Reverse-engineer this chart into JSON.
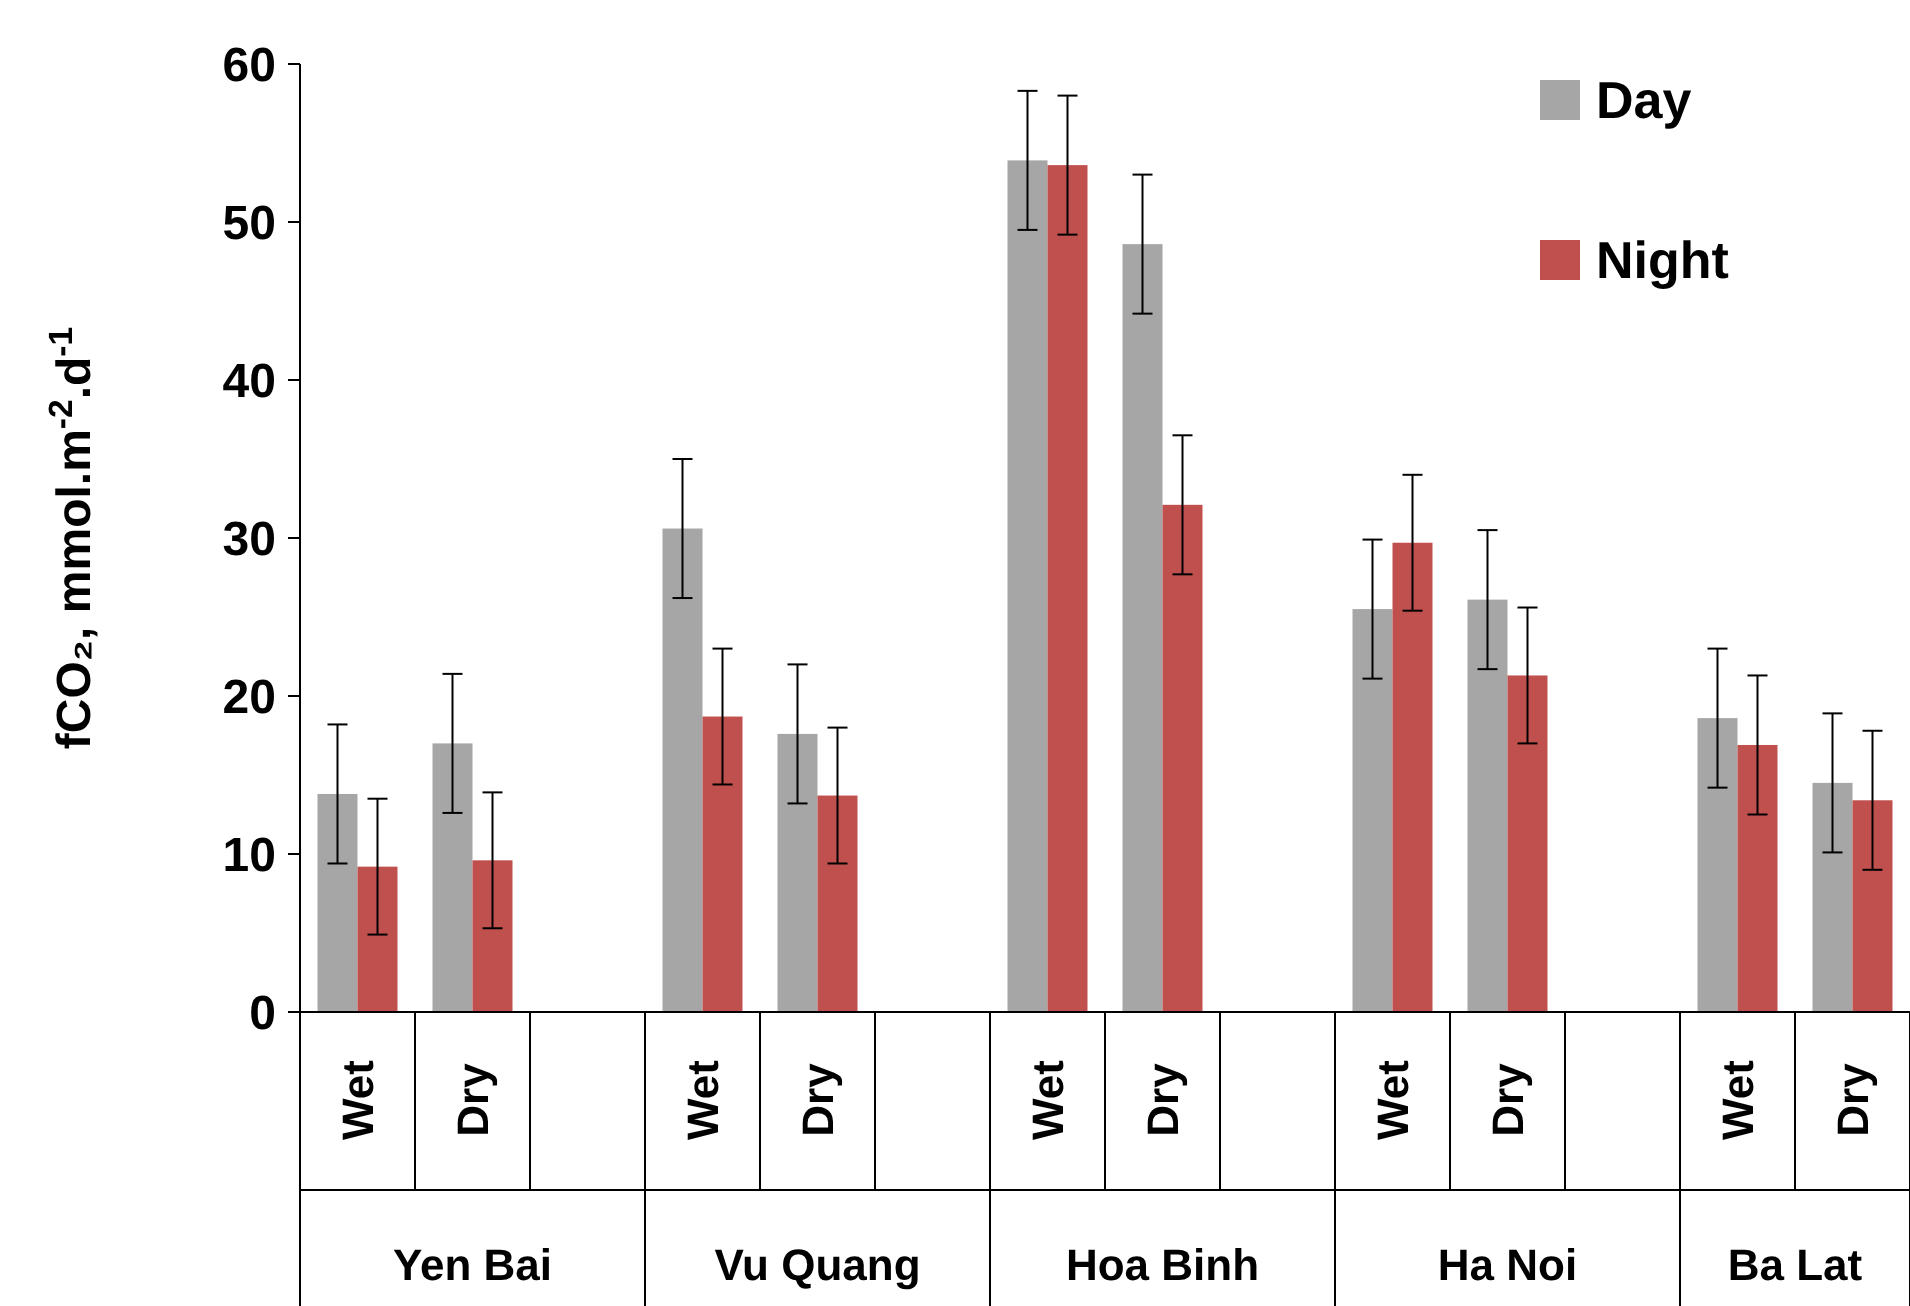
{
  "chart_data": {
    "type": "bar",
    "ylabel": "fCO₂,  mmol.m$^{-2}$.d$^{-1}$",
    "categories": [
      "Wet",
      "Dry",
      null,
      "Wet",
      "Dry",
      null,
      "Wet",
      "Dry",
      null,
      "Wet",
      "Dry",
      null,
      "Wet",
      "Dry"
    ],
    "annotations": [
      "Yen Bai",
      "Vu Quang",
      "Hoa Binh",
      "Ha Noi",
      "Ba Lat"
    ],
    "series": [
      {
        "name": "Day",
        "color": "#a6a6a6",
        "values": [
          13.8,
          17.0,
          null,
          30.6,
          17.6,
          null,
          53.9,
          48.6,
          null,
          25.5,
          26.1,
          null,
          18.6,
          14.5
        ],
        "errors": [
          4.4,
          4.4,
          null,
          4.4,
          4.4,
          null,
          4.4,
          4.4,
          null,
          4.4,
          4.4,
          null,
          4.4,
          4.4
        ]
      },
      {
        "name": "Night",
        "color": "#c0504d",
        "values": [
          9.2,
          9.6,
          null,
          18.7,
          13.7,
          null,
          53.6,
          32.1,
          null,
          29.7,
          21.3,
          null,
          16.9,
          13.4
        ],
        "errors": [
          4.3,
          4.3,
          null,
          4.3,
          4.3,
          null,
          4.4,
          4.4,
          null,
          4.3,
          4.3,
          null,
          4.4,
          4.4
        ]
      }
    ],
    "ylim": [
      0,
      60
    ],
    "yticks": [
      0,
      10,
      20,
      30,
      40,
      50,
      60
    ],
    "legend": "top right"
  }
}
